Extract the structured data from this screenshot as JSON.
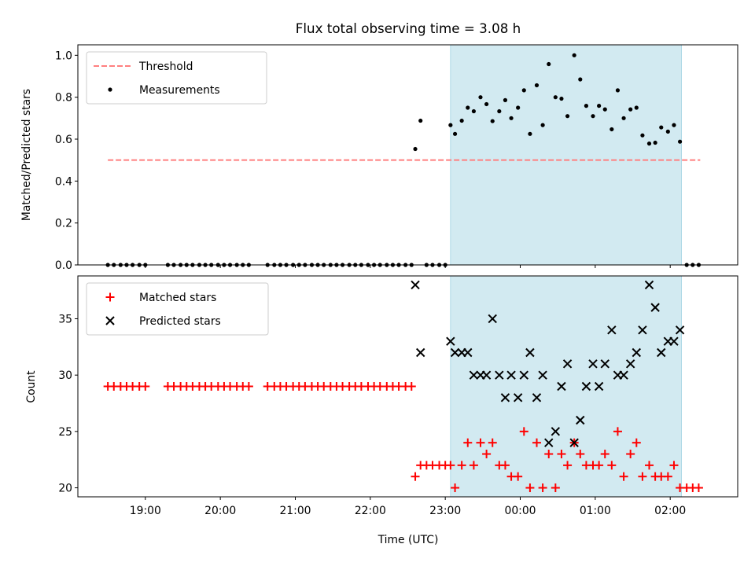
{
  "chart_data": {
    "title": "Flux total observing time = 3.08 h",
    "xlabel": "Time (UTC)",
    "x_ticks": [
      "19:00",
      "20:00",
      "21:00",
      "22:00",
      "23:00",
      "00:00",
      "01:00",
      "02:00"
    ],
    "x_tick_hours": [
      19,
      20,
      21,
      22,
      23,
      24,
      25,
      26
    ],
    "xlim_hours": [
      18.1,
      26.9
    ],
    "shaded_span_hours": [
      23.07,
      26.15
    ],
    "shade_color": "#add8e6",
    "panels": [
      {
        "type": "scatter",
        "ylabel": "Matched/Predicted stars",
        "ylim": [
          0,
          1.05
        ],
        "y_ticks": [
          0.0,
          0.2,
          0.4,
          0.6,
          0.8,
          1.0
        ],
        "y_tick_labels": [
          "0.0",
          "0.2",
          "0.4",
          "0.6",
          "0.8",
          "1.0"
        ],
        "legend_position": "upper-left",
        "threshold": {
          "name": "Threshold",
          "value": 0.5,
          "x_range": [
            18.5,
            26.4
          ],
          "color": "#ff7f7f",
          "style": "dashed"
        },
        "series": [
          {
            "name": "Measurements",
            "marker": "dot",
            "color": "#000000",
            "x": [
              18.5,
              18.58,
              18.67,
              18.75,
              18.83,
              18.92,
              19.0,
              19.3,
              19.38,
              19.47,
              19.55,
              19.63,
              19.72,
              19.8,
              19.88,
              19.97,
              20.05,
              20.13,
              20.22,
              20.3,
              20.38,
              20.63,
              20.72,
              20.8,
              20.88,
              20.97,
              21.05,
              21.13,
              21.22,
              21.3,
              21.38,
              21.47,
              21.55,
              21.63,
              21.72,
              21.8,
              21.88,
              21.97,
              22.05,
              22.13,
              22.22,
              22.3,
              22.38,
              22.47,
              22.55,
              22.6,
              22.67,
              22.75,
              22.83,
              22.92,
              23.0,
              23.07,
              23.13,
              23.22,
              23.3,
              23.38,
              23.47,
              23.55,
              23.63,
              23.72,
              23.8,
              23.88,
              23.97,
              24.05,
              24.13,
              24.22,
              24.3,
              24.38,
              24.47,
              24.55,
              24.63,
              24.72,
              24.8,
              24.88,
              24.97,
              25.05,
              25.13,
              25.22,
              25.3,
              25.38,
              25.47,
              25.55,
              25.63,
              25.72,
              25.8,
              25.88,
              25.97,
              26.05,
              26.13,
              26.22,
              26.3,
              26.38
            ],
            "y": [
              0,
              0,
              0,
              0,
              0,
              0,
              0,
              0,
              0,
              0,
              0,
              0,
              0,
              0,
              0,
              0,
              0,
              0,
              0,
              0,
              0,
              0,
              0,
              0,
              0,
              0,
              0,
              0,
              0,
              0,
              0,
              0,
              0,
              0,
              0,
              0,
              0,
              0,
              0,
              0,
              0,
              0,
              0,
              0,
              0,
              0.553,
              0.688,
              0,
              0,
              0,
              0,
              0.667,
              0.625,
              0.688,
              0.75,
              0.733,
              0.8,
              0.767,
              0.686,
              0.733,
              0.786,
              0.7,
              0.75,
              0.833,
              0.625,
              0.857,
              0.667,
              0.958,
              0.8,
              0.793,
              0.71,
              1.0,
              0.885,
              0.759,
              0.71,
              0.759,
              0.742,
              0.647,
              0.833,
              0.7,
              0.742,
              0.75,
              0.618,
              0.579,
              0.583,
              0.656,
              0.636,
              0.667,
              0.588,
              0,
              0,
              0
            ]
          }
        ]
      },
      {
        "type": "scatter",
        "ylabel": "Count",
        "ylim": [
          19.2,
          38.8
        ],
        "y_ticks": [
          20,
          25,
          30,
          35
        ],
        "y_tick_labels": [
          "20",
          "25",
          "30",
          "35"
        ],
        "legend_position": "upper-left",
        "series": [
          {
            "name": "Matched stars",
            "marker": "plus",
            "color": "#ff0000",
            "x": [
              18.5,
              18.58,
              18.67,
              18.75,
              18.83,
              18.92,
              19.0,
              19.3,
              19.38,
              19.47,
              19.55,
              19.63,
              19.72,
              19.8,
              19.88,
              19.97,
              20.05,
              20.13,
              20.22,
              20.3,
              20.38,
              20.63,
              20.72,
              20.8,
              20.88,
              20.97,
              21.05,
              21.13,
              21.22,
              21.3,
              21.38,
              21.47,
              21.55,
              21.63,
              21.72,
              21.8,
              21.88,
              21.97,
              22.05,
              22.13,
              22.22,
              22.3,
              22.38,
              22.47,
              22.55,
              22.6,
              22.67,
              22.75,
              22.83,
              22.92,
              23.0,
              23.07,
              23.13,
              23.22,
              23.3,
              23.38,
              23.47,
              23.55,
              23.63,
              23.72,
              23.8,
              23.88,
              23.97,
              24.05,
              24.13,
              24.22,
              24.3,
              24.38,
              24.47,
              24.55,
              24.63,
              24.72,
              24.8,
              24.88,
              24.97,
              25.05,
              25.13,
              25.22,
              25.3,
              25.38,
              25.47,
              25.55,
              25.63,
              25.72,
              25.8,
              25.88,
              25.97,
              26.05,
              26.13,
              26.22,
              26.3,
              26.38
            ],
            "y": [
              29,
              29,
              29,
              29,
              29,
              29,
              29,
              29,
              29,
              29,
              29,
              29,
              29,
              29,
              29,
              29,
              29,
              29,
              29,
              29,
              29,
              29,
              29,
              29,
              29,
              29,
              29,
              29,
              29,
              29,
              29,
              29,
              29,
              29,
              29,
              29,
              29,
              29,
              29,
              29,
              29,
              29,
              29,
              29,
              29,
              21,
              22,
              22,
              22,
              22,
              22,
              22,
              20,
              22,
              24,
              22,
              24,
              23,
              24,
              22,
              22,
              21,
              21,
              25,
              20,
              24,
              20,
              23,
              20,
              23,
              22,
              24,
              23,
              22,
              22,
              22,
              23,
              22,
              25,
              21,
              23,
              24,
              21,
              22,
              21,
              21,
              21,
              22,
              20,
              20,
              20,
              20
            ]
          },
          {
            "name": "Predicted stars",
            "marker": "x",
            "color": "#000000",
            "x": [
              22.6,
              22.67,
              23.07,
              23.13,
              23.22,
              23.3,
              23.38,
              23.47,
              23.55,
              23.63,
              23.72,
              23.8,
              23.88,
              23.97,
              24.05,
              24.13,
              24.22,
              24.3,
              24.38,
              24.47,
              24.55,
              24.63,
              24.72,
              24.8,
              24.88,
              24.97,
              25.05,
              25.13,
              25.22,
              25.3,
              25.38,
              25.47,
              25.55,
              25.63,
              25.72,
              25.8,
              25.88,
              25.97,
              26.05,
              26.13
            ],
            "y": [
              38,
              32,
              33,
              32,
              32,
              32,
              30,
              30,
              30,
              35,
              30,
              28,
              30,
              28,
              30,
              32,
              28,
              30,
              24,
              25,
              29,
              31,
              24,
              26,
              29,
              31,
              29,
              31,
              34,
              30,
              30,
              31,
              32,
              34,
              38,
              36,
              32,
              33,
              33,
              34
            ]
          }
        ]
      }
    ]
  }
}
